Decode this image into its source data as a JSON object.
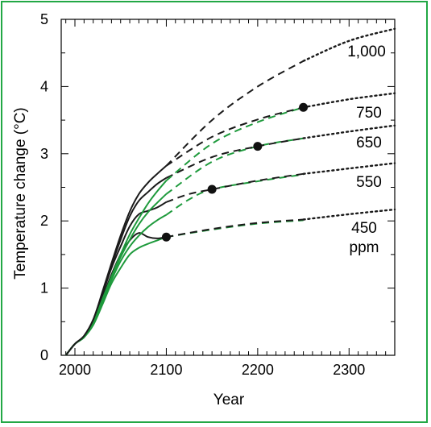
{
  "chart_data": {
    "type": "line",
    "xlabel": "Year",
    "ylabel": "Temperature change (°C)",
    "xlim": [
      1985,
      2350
    ],
    "ylim": [
      0,
      5
    ],
    "xticks": [
      2000,
      2100,
      2200,
      2300
    ],
    "yticks": [
      0,
      1,
      2,
      3,
      4,
      5
    ],
    "grid": false,
    "colors": {
      "black": "#1a1a1a",
      "green": "#1e9a3c",
      "frame": "#22a845"
    },
    "series": [
      {
        "name": "450 ppm",
        "label_lines": [
          "450",
          "ppm"
        ],
        "stabilization_year": 2100,
        "stabilization_value": 1.76,
        "solid_black": [
          [
            1990,
            0
          ],
          [
            2000,
            0.17
          ],
          [
            2010,
            0.28
          ],
          [
            2020,
            0.5
          ],
          [
            2030,
            0.85
          ],
          [
            2040,
            1.2
          ],
          [
            2050,
            1.5
          ],
          [
            2060,
            1.71
          ],
          [
            2070,
            1.82
          ],
          [
            2080,
            1.76
          ],
          [
            2090,
            1.74
          ],
          [
            2100,
            1.76
          ]
        ],
        "solid_green": [
          [
            1990,
            0
          ],
          [
            2000,
            0.17
          ],
          [
            2010,
            0.27
          ],
          [
            2020,
            0.45
          ],
          [
            2030,
            0.75
          ],
          [
            2040,
            1.07
          ],
          [
            2050,
            1.3
          ],
          [
            2060,
            1.5
          ],
          [
            2070,
            1.6
          ],
          [
            2080,
            1.66
          ],
          [
            2090,
            1.71
          ],
          [
            2100,
            1.76
          ]
        ],
        "dashed_black": [
          [
            2100,
            1.76
          ],
          [
            2150,
            1.88
          ],
          [
            2200,
            1.97
          ],
          [
            2250,
            2.02
          ]
        ],
        "dashed_green": [
          [
            2100,
            1.76
          ],
          [
            2150,
            1.87
          ],
          [
            2200,
            1.96
          ],
          [
            2250,
            2.01
          ]
        ],
        "dotted": [
          [
            2250,
            2.02
          ],
          [
            2300,
            2.1
          ],
          [
            2350,
            2.17
          ]
        ]
      },
      {
        "name": "550",
        "label_lines": [
          "550"
        ],
        "stabilization_year": 2150,
        "stabilization_value": 2.47,
        "solid_black": [
          [
            1990,
            0
          ],
          [
            2000,
            0.17
          ],
          [
            2010,
            0.28
          ],
          [
            2020,
            0.52
          ],
          [
            2030,
            0.9
          ],
          [
            2040,
            1.3
          ],
          [
            2050,
            1.62
          ],
          [
            2060,
            1.92
          ],
          [
            2070,
            2.1
          ],
          [
            2080,
            2.15
          ],
          [
            2090,
            2.2
          ],
          [
            2100,
            2.28
          ]
        ],
        "solid_green": [
          [
            1990,
            0
          ],
          [
            2000,
            0.17
          ],
          [
            2010,
            0.27
          ],
          [
            2020,
            0.47
          ],
          [
            2030,
            0.8
          ],
          [
            2040,
            1.12
          ],
          [
            2050,
            1.4
          ],
          [
            2060,
            1.62
          ],
          [
            2070,
            1.78
          ],
          [
            2080,
            1.91
          ],
          [
            2090,
            2.01
          ],
          [
            2100,
            2.09
          ]
        ],
        "dashed_black": [
          [
            2100,
            2.28
          ],
          [
            2125,
            2.4
          ],
          [
            2150,
            2.47
          ],
          [
            2200,
            2.6
          ],
          [
            2250,
            2.7
          ]
        ],
        "dashed_green": [
          [
            2100,
            2.09
          ],
          [
            2125,
            2.32
          ],
          [
            2150,
            2.47
          ],
          [
            2200,
            2.59
          ],
          [
            2250,
            2.69
          ]
        ],
        "dotted": [
          [
            2250,
            2.7
          ],
          [
            2300,
            2.78
          ],
          [
            2350,
            2.86
          ]
        ]
      },
      {
        "name": "650",
        "label_lines": [
          "650"
        ],
        "stabilization_year": 2200,
        "stabilization_value": 3.11,
        "solid_black": [
          [
            1990,
            0
          ],
          [
            2000,
            0.17
          ],
          [
            2010,
            0.29
          ],
          [
            2020,
            0.53
          ],
          [
            2030,
            0.92
          ],
          [
            2040,
            1.34
          ],
          [
            2050,
            1.72
          ],
          [
            2060,
            2.07
          ],
          [
            2070,
            2.3
          ],
          [
            2080,
            2.43
          ],
          [
            2090,
            2.55
          ],
          [
            2100,
            2.64
          ]
        ],
        "solid_green": [
          [
            1990,
            0
          ],
          [
            2000,
            0.17
          ],
          [
            2010,
            0.27
          ],
          [
            2020,
            0.48
          ],
          [
            2030,
            0.82
          ],
          [
            2040,
            1.15
          ],
          [
            2050,
            1.46
          ],
          [
            2060,
            1.72
          ],
          [
            2070,
            1.95
          ],
          [
            2080,
            2.13
          ],
          [
            2090,
            2.27
          ],
          [
            2100,
            2.4
          ]
        ],
        "dashed_black": [
          [
            2100,
            2.64
          ],
          [
            2150,
            2.95
          ],
          [
            2200,
            3.11
          ],
          [
            2250,
            3.23
          ]
        ],
        "dashed_green": [
          [
            2100,
            2.4
          ],
          [
            2150,
            2.88
          ],
          [
            2200,
            3.11
          ],
          [
            2250,
            3.23
          ]
        ],
        "dotted": [
          [
            2250,
            3.23
          ],
          [
            2300,
            3.33
          ],
          [
            2350,
            3.42
          ]
        ]
      },
      {
        "name": "750",
        "label_lines": [
          "750"
        ],
        "stabilization_year": 2250,
        "stabilization_value": 3.69,
        "solid_black": [
          [
            1990,
            0
          ],
          [
            2000,
            0.17
          ],
          [
            2010,
            0.29
          ],
          [
            2020,
            0.53
          ],
          [
            2030,
            0.94
          ],
          [
            2040,
            1.37
          ],
          [
            2050,
            1.78
          ],
          [
            2060,
            2.14
          ],
          [
            2070,
            2.4
          ],
          [
            2080,
            2.57
          ],
          [
            2090,
            2.7
          ],
          [
            2100,
            2.82
          ]
        ],
        "solid_green": [
          [
            1990,
            0
          ],
          [
            2000,
            0.17
          ],
          [
            2010,
            0.27
          ],
          [
            2020,
            0.48
          ],
          [
            2030,
            0.83
          ],
          [
            2040,
            1.17
          ],
          [
            2050,
            1.5
          ],
          [
            2060,
            1.8
          ],
          [
            2070,
            2.04
          ],
          [
            2080,
            2.26
          ],
          [
            2090,
            2.44
          ],
          [
            2100,
            2.6
          ]
        ],
        "dashed_black": [
          [
            2100,
            2.82
          ],
          [
            2150,
            3.25
          ],
          [
            2200,
            3.51
          ],
          [
            2250,
            3.69
          ]
        ],
        "dashed_green": [
          [
            2100,
            2.6
          ],
          [
            2150,
            3.15
          ],
          [
            2200,
            3.47
          ],
          [
            2250,
            3.69
          ]
        ],
        "dotted": [
          [
            2250,
            3.69
          ],
          [
            2300,
            3.81
          ],
          [
            2350,
            3.9
          ]
        ]
      },
      {
        "name": "1,000",
        "label_lines": [
          "1,000"
        ],
        "dashed_black": [
          [
            2100,
            2.82
          ],
          [
            2150,
            3.5
          ],
          [
            2200,
            4.0
          ],
          [
            2250,
            4.38
          ]
        ],
        "dotted": [
          [
            2250,
            4.38
          ],
          [
            2300,
            4.68
          ],
          [
            2350,
            4.86
          ]
        ]
      }
    ]
  }
}
